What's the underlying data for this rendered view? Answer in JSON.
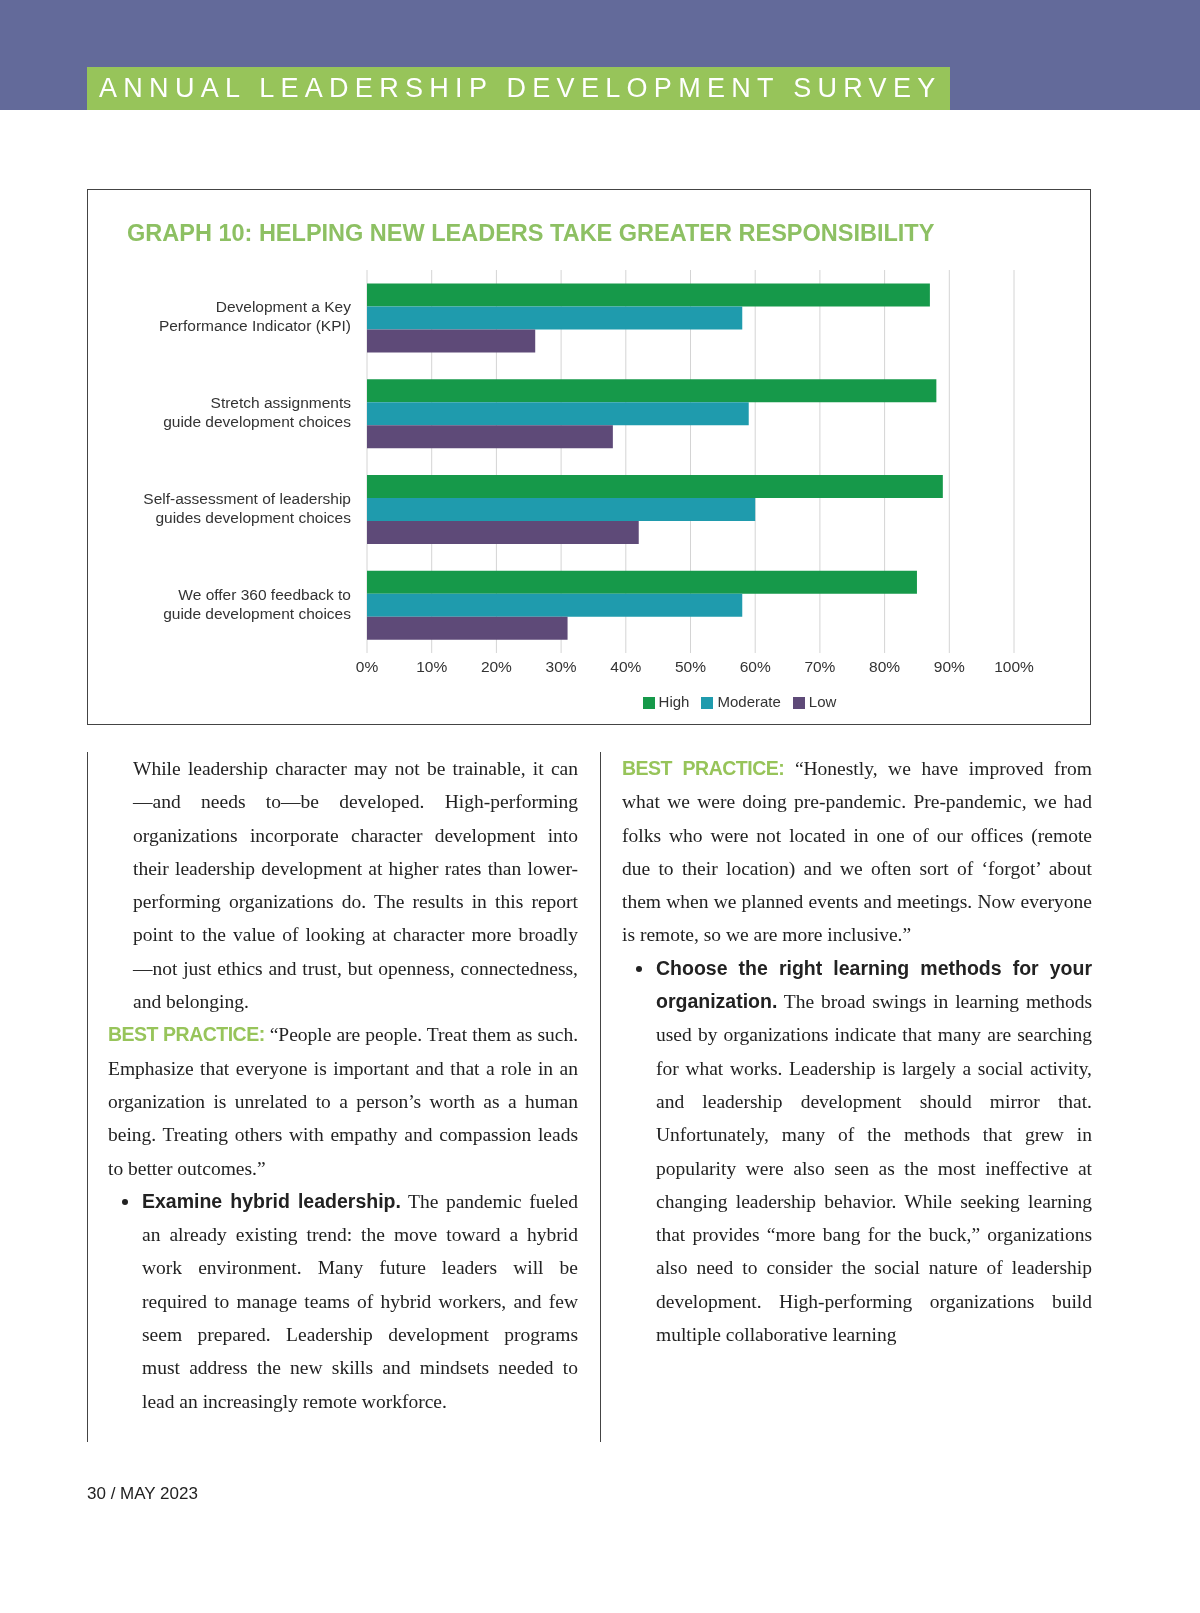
{
  "chart_data": {
    "type": "bar",
    "orientation": "horizontal",
    "title": "GRAPH 10: HELPING NEW LEADERS TAKE GREATER RESPONSIBILITY",
    "categories": [
      "Development a Key\nPerformance Indicator (KPI)",
      "Stretch assignments\nguide development choices",
      "Self-assessment of leadership\nguides development choices",
      "We offer 360 feedback to\nguide development choices"
    ],
    "series": [
      {
        "name": "High",
        "color": "#16994a",
        "values": [
          87,
          88,
          89,
          85
        ]
      },
      {
        "name": "Moderate",
        "color": "#1f9bad",
        "values": [
          58,
          59,
          60,
          58
        ]
      },
      {
        "name": "Low",
        "color": "#5e4a78",
        "values": [
          26,
          38,
          42,
          31
        ]
      }
    ],
    "xlim": [
      0,
      100
    ],
    "xticks": [
      {
        "value": 0,
        "label": "0%"
      },
      {
        "value": 10,
        "label": "10%"
      },
      {
        "value": 20,
        "label": "20%"
      },
      {
        "value": 30,
        "label": "30%"
      },
      {
        "value": 40,
        "label": "40%"
      },
      {
        "value": 50,
        "label": "50%"
      },
      {
        "value": 60,
        "label": "60%"
      },
      {
        "value": 70,
        "label": "70%"
      },
      {
        "value": 80,
        "label": "80%"
      },
      {
        "value": 90,
        "label": "90%"
      },
      {
        "value": 100,
        "label": "100%"
      }
    ],
    "grid": "x",
    "legend": "bottom",
    "tick_labels": "xy",
    "annotations": [
      "ANNUAL LEADERSHIP DEVELOPMENT SURVEY",
      "While leadership character may not be trainable, it can—and needs to—be developed. High-performing organizations incorporate character development into their leadership development at higher rates than lower-performing organizations do. The results in this report point to the value of looking at character more broadly—not just ethics and trust, but openness, connectedness, and belonging.",
      "BEST PRACTICE:",
      "“People are people. Treat them as such. Emphasize that everyone is important and that a role in an organization is unrelated to a person’s worth as a human being. Treating others with empathy and compassion leads to better outcomes.”",
      "Examine hybrid leadership.",
      "The pandemic fueled an already existing trend: the move toward a hybrid work environment. Many future leaders will be required to manage teams of hybrid workers, and few seem prepared. Leadership development programs must address the new skills and mindsets needed to lead an increasingly remote workforce.",
      "BEST PRACTICE:",
      "“Honestly, we have improved from what we were doing pre-pandemic. Pre-pandemic, we had folks who were not located in one of our offices (remote due to their location) and we often sort of ‘forgot’ about them when we planned events and meetings. Now everyone is remote, so we are more inclusive.”",
      "Choose the right learning methods for your organization.",
      "The broad swings in learning methods used by organizations indicate that many are searching for what works. Leadership is largely a social activity, and leadership development should mirror that. Unfortunately, many of the methods that grew in popularity were also seen as the most ineffective at changing leadership behavior. While seeking learning that provides “more bang for the buck,” organizations also need to consider the social nature of leadership development. High-performing organizations build multiple collaborative learning",
      "30 / MAY 2023"
    ]
  }
}
